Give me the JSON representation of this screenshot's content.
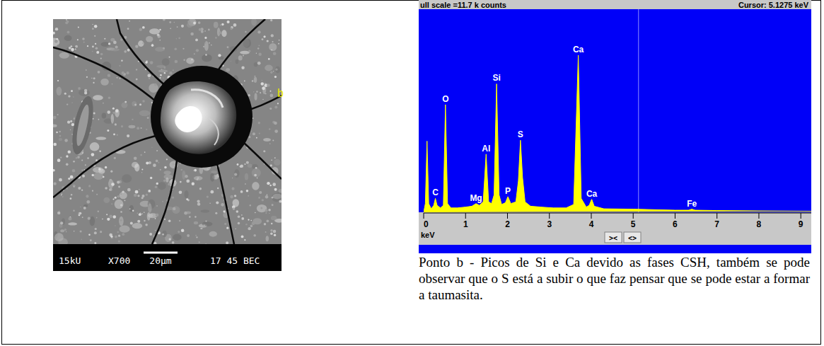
{
  "chart_data": {
    "type": "area",
    "title": "ull scale =11.7 k counts",
    "xlabel": "keV",
    "x": [
      0.0,
      0.04,
      0.08,
      0.12,
      0.18,
      0.24,
      0.28,
      0.32,
      0.4,
      0.47,
      0.52,
      0.57,
      0.65,
      0.8,
      1.0,
      1.15,
      1.25,
      1.33,
      1.42,
      1.49,
      1.55,
      1.62,
      1.68,
      1.74,
      1.8,
      1.86,
      1.95,
      2.01,
      2.08,
      2.2,
      2.26,
      2.31,
      2.36,
      2.42,
      2.55,
      2.8,
      3.1,
      3.4,
      3.58,
      3.69,
      3.76,
      3.88,
      3.95,
      4.01,
      4.07,
      4.3,
      5.0,
      6.0,
      6.32,
      6.4,
      6.48,
      7.0,
      8.0,
      9.25
    ],
    "values": [
      0.0,
      0.5,
      4.1,
      0.5,
      0.2,
      0.4,
      0.8,
      0.4,
      0.25,
      0.4,
      6.2,
      0.5,
      0.25,
      0.25,
      0.3,
      0.35,
      0.5,
      0.4,
      0.6,
      3.35,
      0.6,
      0.5,
      1.0,
      7.4,
      1.0,
      0.45,
      0.55,
      0.9,
      0.5,
      0.6,
      1.8,
      4.15,
      2.0,
      0.6,
      0.35,
      0.3,
      0.25,
      0.25,
      0.45,
      9.05,
      0.8,
      0.3,
      0.4,
      0.75,
      0.35,
      0.2,
      0.18,
      0.12,
      0.12,
      0.18,
      0.12,
      0.1,
      0.08,
      0.06
    ],
    "color": "#ffff00",
    "xlim": [
      0,
      9.25
    ],
    "ylim": [
      0,
      11.7
    ],
    "xticks": [
      0,
      1,
      2,
      3,
      4,
      5,
      6,
      7,
      8,
      9
    ],
    "tick_labels": "x",
    "annotations": [
      {
        "text": "C",
        "x": 0.28,
        "y": 0.8
      },
      {
        "text": "O",
        "x": 0.52,
        "y": 6.2
      },
      {
        "text": "Mg",
        "x": 1.25,
        "y": 0.5
      },
      {
        "text": "Al",
        "x": 1.49,
        "y": 3.35
      },
      {
        "text": "Si",
        "x": 1.74,
        "y": 7.4
      },
      {
        "text": "P",
        "x": 2.01,
        "y": 0.9
      },
      {
        "text": "S",
        "x": 2.31,
        "y": 4.15
      },
      {
        "text": "Ca",
        "x": 3.69,
        "y": 9.05
      },
      {
        "text": "Ca",
        "x": 4.01,
        "y": 0.75
      },
      {
        "text": "Fe",
        "x": 6.4,
        "y": 0.18
      }
    ],
    "cursor": {
      "value": 5.1275,
      "label": "Cursor: 5.1275 keV"
    },
    "buttons": [
      "><",
      "<>"
    ]
  },
  "micrograph": {
    "label": "b",
    "voltage": "15kU",
    "magnification": "X700",
    "scale_bar": "20μm",
    "info": "17 45 BEC"
  },
  "caption": "Ponto b - Picos de Si e Ca devido as fases CSH, também se pode observar que o S está a subir o que faz pensar que se pode estar a formar a taumasita."
}
